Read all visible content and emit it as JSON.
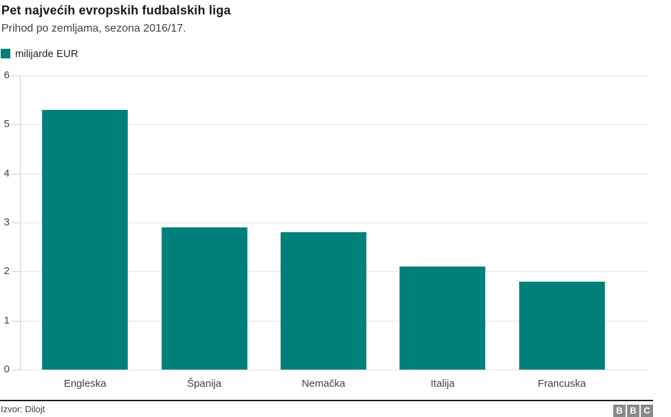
{
  "header": {
    "title": "Pet najvećih evropskih fudbalskih liga",
    "subtitle": "Prihod po zemljama, sezona 2016/17."
  },
  "legend": {
    "label": "milijarde EUR",
    "color": "#00807a"
  },
  "chart_data": {
    "type": "bar",
    "title": "Pet najvećih evropskih fudbalskih liga",
    "subtitle": "Prihod po zemljama, sezona 2016/17.",
    "unit": "milijarde EUR",
    "categories": [
      "Engleska",
      "Španija",
      "Nemačka",
      "Italija",
      "Francuska"
    ],
    "values": [
      5.3,
      2.9,
      2.8,
      2.1,
      1.8
    ],
    "xlabel": "",
    "ylabel": "",
    "ylim": [
      0,
      6
    ],
    "yticks": [
      0,
      1,
      2,
      3,
      4,
      5,
      6
    ],
    "grid": true,
    "bar_color": "#00807a",
    "legend_entries": [
      "milijarde EUR"
    ],
    "legend_position": "top-left"
  },
  "footer": {
    "source": "Izvor: Dilojt",
    "logo_letters": [
      "B",
      "B",
      "C"
    ]
  }
}
